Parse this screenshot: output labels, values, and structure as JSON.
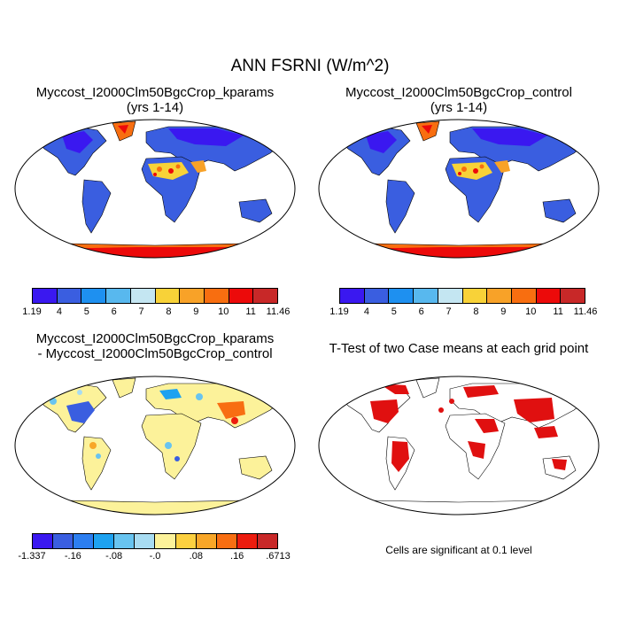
{
  "title": "ANN FSRNI (W/m^2)",
  "panels": {
    "top_left": {
      "line1": "Myccost_I2000Clm50BgcCrop_kparams",
      "line2": "(yrs 1-14)"
    },
    "top_right": {
      "line1": "Myccost_I2000Clm50BgcCrop_control",
      "line2": "(yrs 1-14)"
    },
    "bottom_left": {
      "line1": "Myccost_I2000Clm50BgcCrop_kparams",
      "line2": "- Myccost_I2000Clm50BgcCrop_control"
    },
    "bottom_right": {
      "line1": "T-Test of two Case means at each grid point",
      "note": "Cells are significant at 0.1 level"
    }
  },
  "colorbar_top": {
    "colors": [
      "#3a18f0",
      "#3a5ee0",
      "#1e90f0",
      "#58b8ee",
      "#c4e6f2",
      "#f8d238",
      "#f8a228",
      "#f86e10",
      "#ec0a0a",
      "#c82828"
    ],
    "labels": [
      "1.19",
      "4",
      "5",
      "6",
      "7",
      "8",
      "9",
      "10",
      "11",
      "11.46"
    ]
  },
  "colorbar_diff": {
    "colors": [
      "#3a18f0",
      "#3a5ee0",
      "#2c7ef0",
      "#1ea2f0",
      "#68c4f0",
      "#a8dcf2",
      "#fcf29a",
      "#fcd040",
      "#f8a628",
      "#f86e12",
      "#ec1c0e",
      "#c82828"
    ],
    "labels": [
      "-1.337",
      "-.16",
      "-.08",
      "-.0",
      ".08",
      ".16",
      ".6713"
    ]
  },
  "colors": {
    "significant": "#e01010",
    "outline": "#000000"
  }
}
